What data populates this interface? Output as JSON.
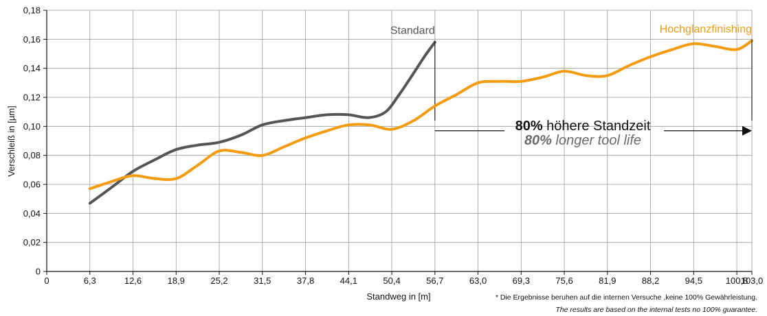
{
  "chart_data": {
    "type": "line",
    "xlabel": "Standweg in [m]",
    "ylabel": "Verschleiß in [µm]",
    "xlim": [
      0,
      103.0
    ],
    "ylim": [
      0,
      0.18
    ],
    "x_ticks": [
      "0",
      "6,3",
      "12,6",
      "18,9",
      "25,2",
      "31,5",
      "37,8",
      "44,1",
      "50,4",
      "56,7",
      "63,0",
      "69,3",
      "75,6",
      "81,9",
      "88,2",
      "94,5",
      "100,8",
      "103,0"
    ],
    "y_ticks": [
      "0",
      "0,02",
      "0,04",
      "0,06",
      "0,08",
      "0,10",
      "0,12",
      "0,14",
      "0,16",
      "0,18"
    ],
    "grid": true,
    "series": [
      {
        "name": "Standard",
        "color": "#555555",
        "x": [
          6.3,
          9.5,
          12.6,
          15.8,
          18.9,
          22.0,
          25.2,
          28.4,
          31.5,
          34.7,
          37.8,
          41.0,
          44.1,
          47.0,
          49.5,
          51.5,
          53.5,
          55.3,
          56.7
        ],
        "y": [
          0.047,
          0.058,
          0.069,
          0.077,
          0.084,
          0.087,
          0.089,
          0.094,
          0.101,
          0.104,
          0.106,
          0.108,
          0.108,
          0.106,
          0.11,
          0.122,
          0.136,
          0.149,
          0.158
        ]
      },
      {
        "name": "Hochglanzfinishing",
        "color": "#f39c12",
        "x": [
          6.3,
          9.5,
          12.6,
          15.8,
          18.9,
          22.0,
          25.2,
          28.4,
          31.5,
          34.7,
          37.8,
          41.0,
          44.1,
          47.2,
          50.4,
          53.6,
          56.7,
          59.9,
          63.0,
          66.2,
          69.3,
          72.5,
          75.6,
          78.8,
          81.9,
          85.1,
          88.2,
          91.4,
          94.5,
          97.7,
          100.8,
          103.0
        ],
        "y": [
          0.057,
          0.062,
          0.066,
          0.064,
          0.064,
          0.073,
          0.083,
          0.082,
          0.08,
          0.086,
          0.092,
          0.097,
          0.101,
          0.101,
          0.098,
          0.104,
          0.114,
          0.122,
          0.13,
          0.131,
          0.131,
          0.134,
          0.138,
          0.135,
          0.135,
          0.142,
          0.148,
          0.153,
          0.157,
          0.155,
          0.153,
          0.159
        ]
      }
    ],
    "annotation": {
      "percent": "80%",
      "line1": "höhere Standzeit",
      "line2": "longer tool life",
      "from_x": 56.7,
      "to_x": 103.0,
      "y": 0.105
    },
    "footnote_de": "* Die Ergebnisse beruhen auf die internen Versuche ,keine 100% Gewährleistung.",
    "footnote_en": "The results are based on the internal tests no 100% guarantee."
  }
}
